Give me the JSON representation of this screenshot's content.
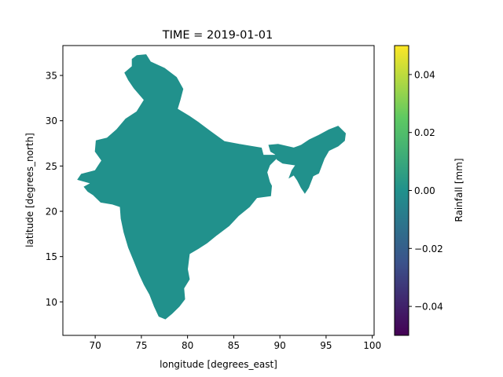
{
  "title": "TIME = 2019-01-01",
  "xlabel": "longitude [degrees_east]",
  "ylabel": "latitude [degrees_north]",
  "colorbar": {
    "label": "Rainfall [mm]",
    "ticks": [
      {
        "value": 0.04,
        "label": "0.04"
      },
      {
        "value": 0.02,
        "label": "0.02"
      },
      {
        "value": 0.0,
        "label": "0.00"
      },
      {
        "value": -0.02,
        "label": "−0.02"
      },
      {
        "value": -0.04,
        "label": "−0.04"
      }
    ],
    "range": [
      -0.05,
      0.05
    ],
    "cmap": [
      "#440154",
      "#3b528b",
      "#21918c",
      "#5ec962",
      "#fde725"
    ]
  },
  "chart_data": {
    "type": "heatmap",
    "title": "TIME = 2019-01-01",
    "xlabel": "longitude [degrees_east]",
    "ylabel": "latitude [degrees_north]",
    "xlim": [
      66.5,
      100.2
    ],
    "ylim": [
      6.3,
      38.3
    ],
    "xticks": [
      70,
      75,
      80,
      85,
      90,
      95,
      100
    ],
    "yticks": [
      10,
      15,
      20,
      25,
      30,
      35
    ],
    "fill_value": 0.0,
    "fill_color": "#21918c",
    "regions": [
      {
        "name": "mainland",
        "points": [
          [
            74.5,
            37.2
          ],
          [
            75.5,
            37.3
          ],
          [
            76.0,
            36.5
          ],
          [
            77.5,
            35.8
          ],
          [
            78.8,
            34.8
          ],
          [
            79.5,
            33.5
          ],
          [
            79.2,
            32.3
          ],
          [
            78.9,
            31.3
          ],
          [
            80.2,
            30.5
          ],
          [
            81.2,
            29.8
          ],
          [
            82.5,
            28.8
          ],
          [
            84.0,
            27.7
          ],
          [
            85.6,
            27.4
          ],
          [
            86.8,
            27.2
          ],
          [
            88.0,
            27.0
          ],
          [
            88.2,
            26.2
          ],
          [
            89.5,
            26.2
          ],
          [
            89.8,
            26.0
          ],
          [
            89.4,
            25.6
          ],
          [
            88.9,
            25.1
          ],
          [
            88.6,
            24.3
          ],
          [
            88.9,
            23.2
          ],
          [
            89.1,
            22.8
          ],
          [
            89.0,
            21.7
          ],
          [
            87.5,
            21.5
          ],
          [
            86.7,
            20.5
          ],
          [
            85.5,
            19.5
          ],
          [
            84.5,
            18.4
          ],
          [
            83.2,
            17.4
          ],
          [
            82.1,
            16.5
          ],
          [
            81.2,
            15.9
          ],
          [
            80.2,
            15.3
          ],
          [
            80.0,
            13.6
          ],
          [
            80.2,
            12.5
          ],
          [
            79.6,
            11.5
          ],
          [
            79.7,
            10.3
          ],
          [
            79.1,
            9.5
          ],
          [
            78.3,
            8.7
          ],
          [
            77.6,
            8.1
          ],
          [
            76.9,
            8.4
          ],
          [
            76.4,
            9.5
          ],
          [
            75.9,
            10.8
          ],
          [
            75.3,
            11.9
          ],
          [
            74.8,
            13.0
          ],
          [
            74.2,
            14.5
          ],
          [
            73.6,
            16.0
          ],
          [
            73.1,
            17.7
          ],
          [
            72.8,
            19.2
          ],
          [
            72.7,
            20.5
          ],
          [
            71.8,
            20.8
          ],
          [
            70.6,
            21.0
          ],
          [
            69.8,
            21.8
          ],
          [
            69.2,
            22.2
          ],
          [
            68.8,
            22.7
          ],
          [
            69.5,
            23.1
          ],
          [
            68.1,
            23.5
          ],
          [
            68.5,
            24.1
          ],
          [
            70.0,
            24.5
          ],
          [
            70.7,
            25.6
          ],
          [
            70.0,
            26.6
          ],
          [
            70.1,
            27.8
          ],
          [
            71.3,
            28.1
          ],
          [
            72.3,
            29.0
          ],
          [
            73.3,
            30.2
          ],
          [
            74.5,
            31.0
          ],
          [
            75.3,
            32.3
          ],
          [
            74.2,
            33.6
          ],
          [
            73.6,
            34.5
          ],
          [
            73.2,
            35.3
          ],
          [
            74.0,
            36.0
          ],
          [
            74.0,
            36.8
          ]
        ]
      },
      {
        "name": "northeast",
        "points": [
          [
            88.8,
            27.3
          ],
          [
            89.8,
            27.4
          ],
          [
            91.5,
            27.0
          ],
          [
            92.3,
            27.3
          ],
          [
            93.2,
            27.9
          ],
          [
            94.2,
            28.4
          ],
          [
            95.3,
            29.0
          ],
          [
            96.3,
            29.4
          ],
          [
            97.1,
            28.6
          ],
          [
            97.0,
            27.8
          ],
          [
            96.3,
            27.2
          ],
          [
            95.3,
            26.7
          ],
          [
            94.8,
            25.8
          ],
          [
            94.2,
            24.2
          ],
          [
            93.6,
            23.9
          ],
          [
            93.1,
            22.6
          ],
          [
            92.7,
            22.0
          ],
          [
            92.3,
            22.6
          ],
          [
            91.9,
            23.4
          ],
          [
            91.5,
            24.0
          ],
          [
            91.0,
            23.7
          ],
          [
            91.3,
            24.5
          ],
          [
            91.7,
            25.1
          ],
          [
            90.3,
            25.3
          ],
          [
            89.7,
            25.7
          ],
          [
            89.5,
            26.3
          ],
          [
            89.0,
            26.6
          ]
        ]
      }
    ]
  }
}
